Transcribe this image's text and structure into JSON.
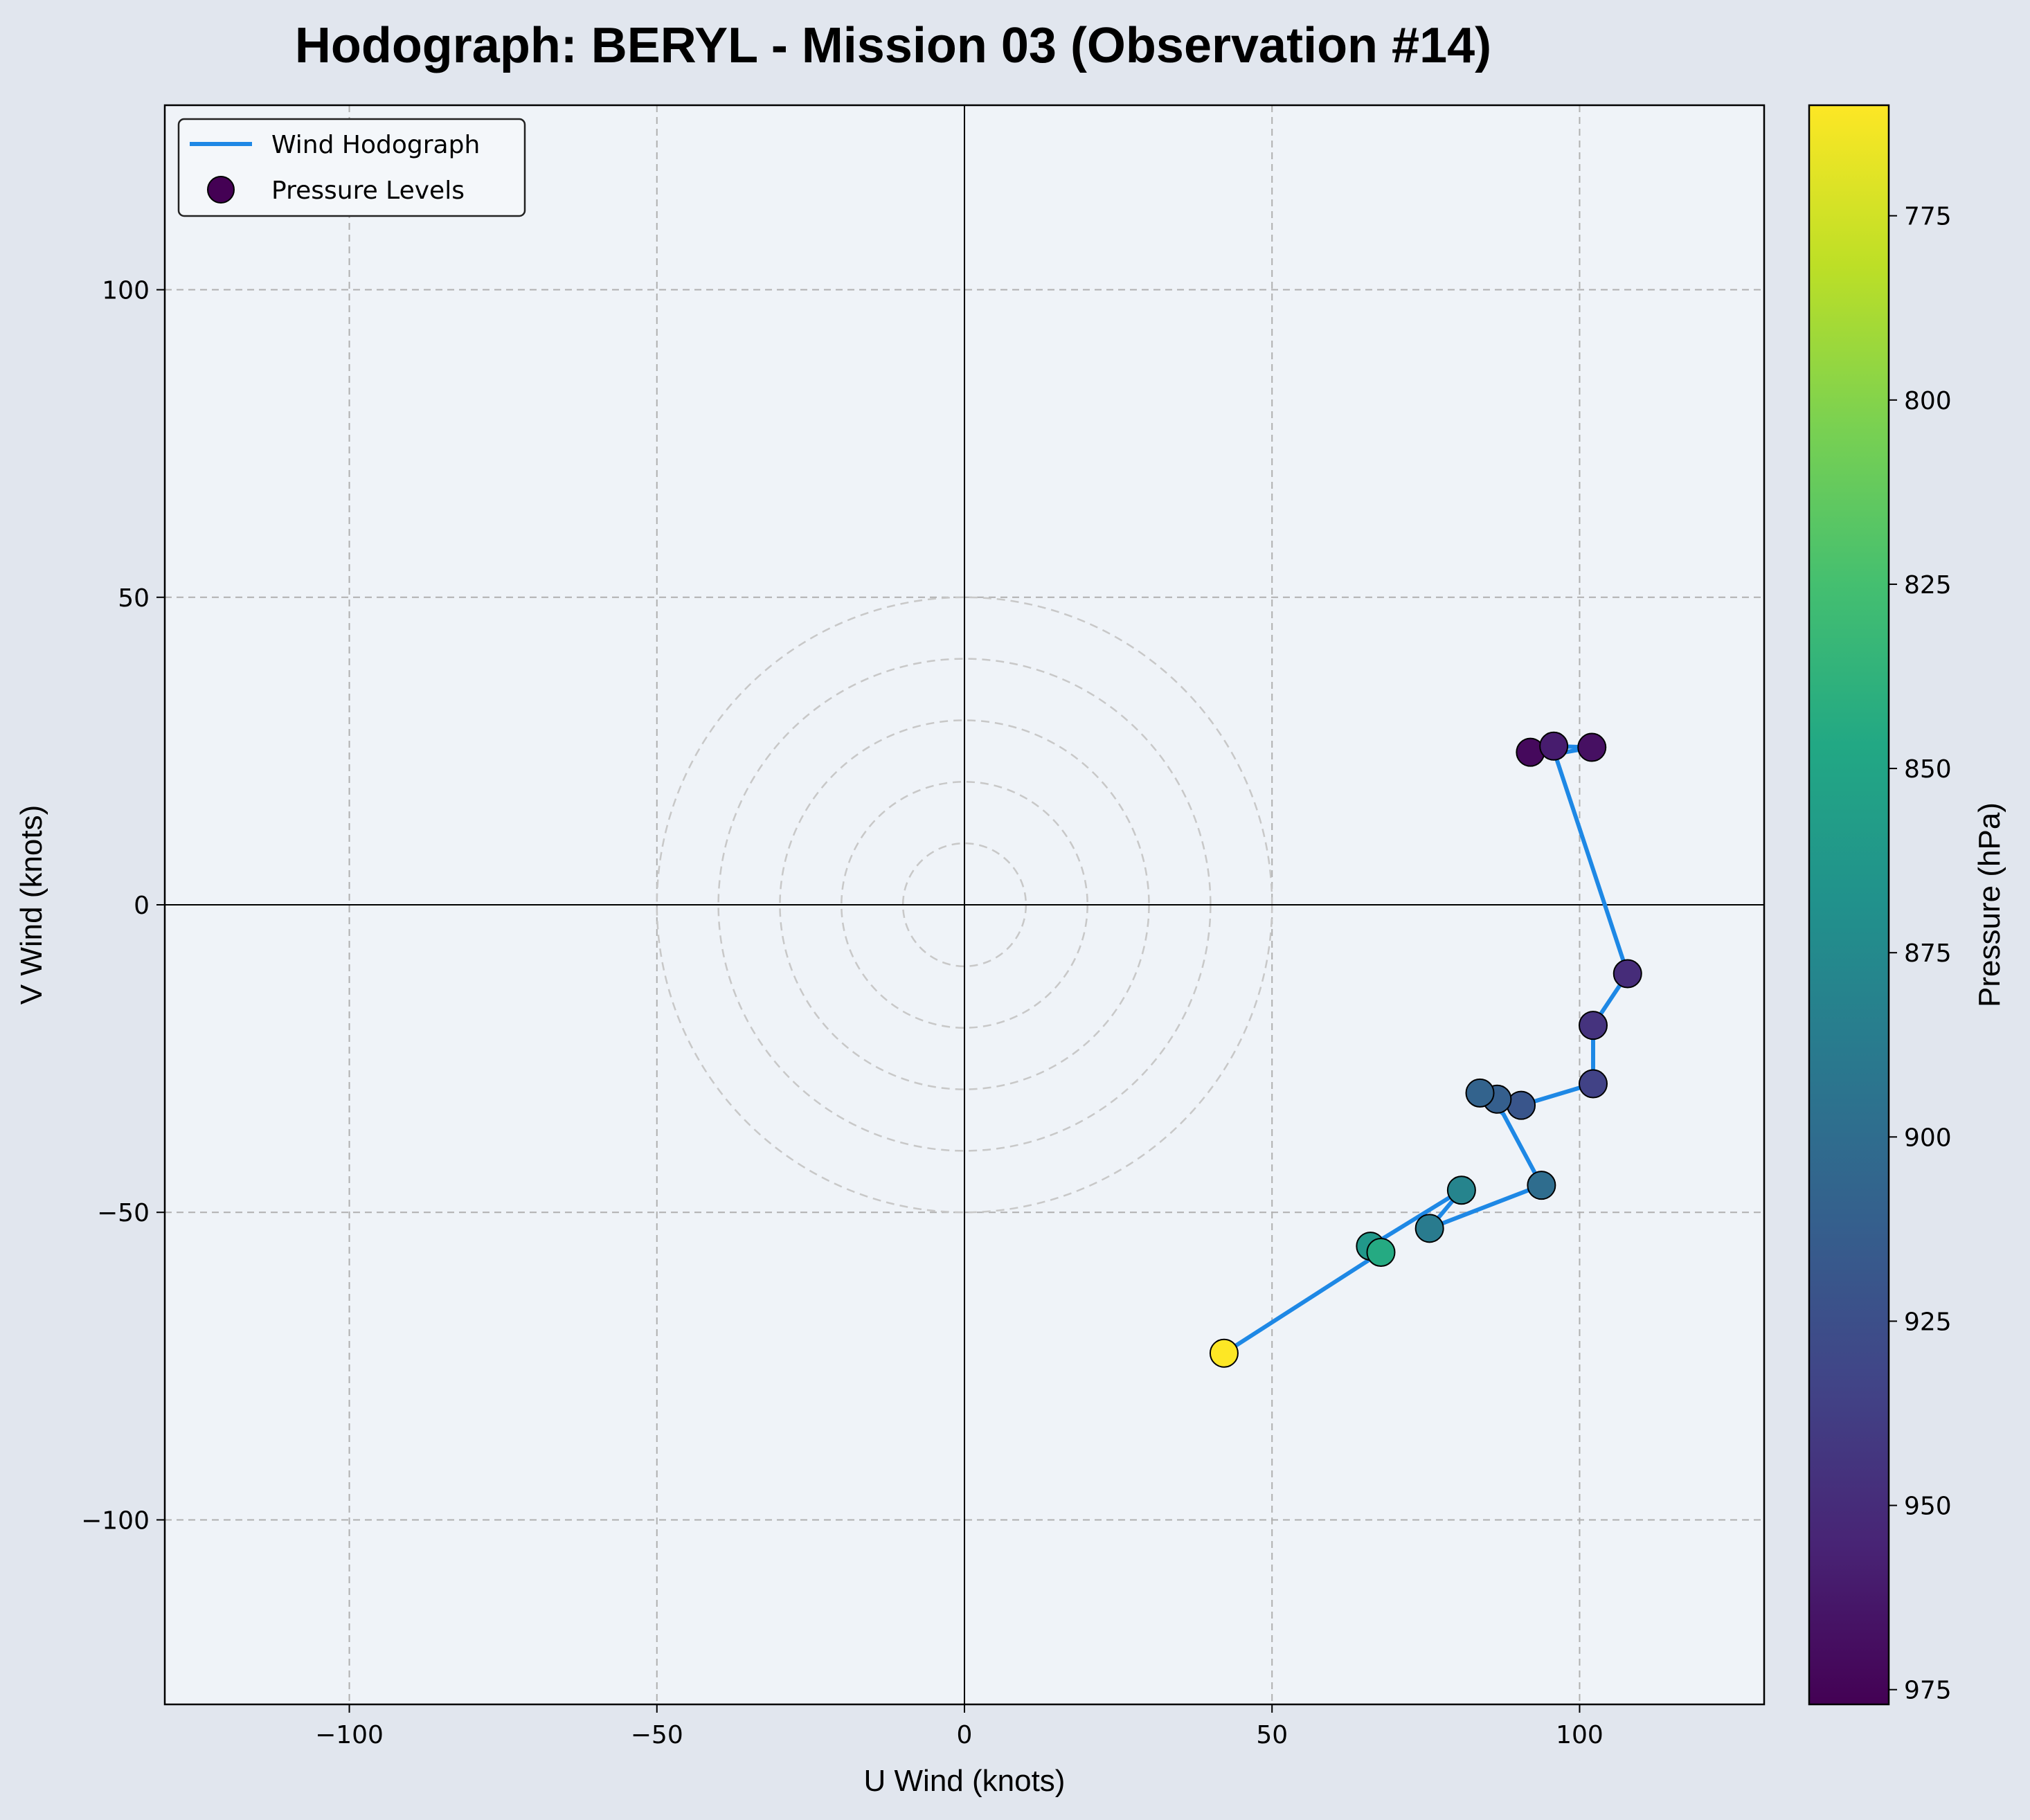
{
  "chart_data": {
    "type": "line",
    "title": "Hodograph: BERYL - Mission 03 (Observation #14)",
    "xlabel": "U Wind (knots)",
    "ylabel": "V Wind (knots)",
    "xlim": [
      -130,
      130
    ],
    "ylim": [
      -130,
      130
    ],
    "xticks": [
      -100,
      -50,
      0,
      50,
      100
    ],
    "yticks": [
      -100,
      -50,
      0,
      50,
      100
    ],
    "grid": true,
    "reference_rings_knots": [
      10,
      20,
      30,
      40,
      50
    ],
    "legend": {
      "placement": "top-left",
      "entries": [
        "Wind Hodograph",
        "Pressure Levels"
      ]
    },
    "series": [
      {
        "name": "Wind Hodograph",
        "type": "line",
        "color": "#1e88e5",
        "points": [
          {
            "u": 92.0,
            "v": 24.8,
            "p": 972
          },
          {
            "u": 95.8,
            "v": 25.8,
            "p": 960
          },
          {
            "u": 102.0,
            "v": 25.6,
            "p": 968
          },
          {
            "u": 96.0,
            "v": 24.5,
            "p": 960
          },
          {
            "u": 107.8,
            "v": -11.2,
            "p": 950
          },
          {
            "u": 102.2,
            "v": -19.6,
            "p": 945
          },
          {
            "u": 102.2,
            "v": -29.1,
            "p": 935
          },
          {
            "u": 90.5,
            "v": -32.6,
            "p": 920
          },
          {
            "u": 86.6,
            "v": -31.6,
            "p": 912
          },
          {
            "u": 83.8,
            "v": -30.6,
            "p": 908
          },
          {
            "u": 87.6,
            "v": -34.0,
            "p": 908
          },
          {
            "u": 93.8,
            "v": -45.6,
            "p": 900
          },
          {
            "u": 75.6,
            "v": -52.6,
            "p": 888
          },
          {
            "u": 80.8,
            "v": -46.4,
            "p": 880
          },
          {
            "u": 66.0,
            "v": -55.5,
            "p": 862
          },
          {
            "u": 67.7,
            "v": -56.5,
            "p": 845
          },
          {
            "u": 42.2,
            "v": -72.9,
            "p": 760
          }
        ]
      }
    ],
    "scatter_points": [
      {
        "u": 92.0,
        "v": 24.8,
        "p": 972
      },
      {
        "u": 95.8,
        "v": 25.8,
        "p": 960
      },
      {
        "u": 102.0,
        "v": 25.6,
        "p": 968
      },
      {
        "u": 107.8,
        "v": -11.2,
        "p": 950
      },
      {
        "u": 102.2,
        "v": -19.6,
        "p": 945
      },
      {
        "u": 102.2,
        "v": -29.1,
        "p": 935
      },
      {
        "u": 90.5,
        "v": -32.6,
        "p": 920
      },
      {
        "u": 86.6,
        "v": -31.6,
        "p": 912
      },
      {
        "u": 83.8,
        "v": -30.6,
        "p": 908
      },
      {
        "u": 93.8,
        "v": -45.6,
        "p": 900
      },
      {
        "u": 75.6,
        "v": -52.6,
        "p": 888
      },
      {
        "u": 80.8,
        "v": -46.4,
        "p": 880
      },
      {
        "u": 66.0,
        "v": -55.5,
        "p": 862
      },
      {
        "u": 67.7,
        "v": -56.5,
        "p": 845
      },
      {
        "u": 42.2,
        "v": -72.9,
        "p": 760
      }
    ],
    "colorbar": {
      "label": "Pressure (hPa)",
      "colormap": "viridis",
      "reversed": true,
      "range": [
        760,
        977
      ],
      "ticks": [
        775,
        800,
        825,
        850,
        875,
        900,
        925,
        950,
        975
      ]
    }
  },
  "colors": {
    "figure_bg": "#e1e6ee",
    "axes_bg": "#eff3f8",
    "line": "#1e88e5",
    "grid": "#b0b0b0",
    "rings": "#c8c8c8"
  }
}
